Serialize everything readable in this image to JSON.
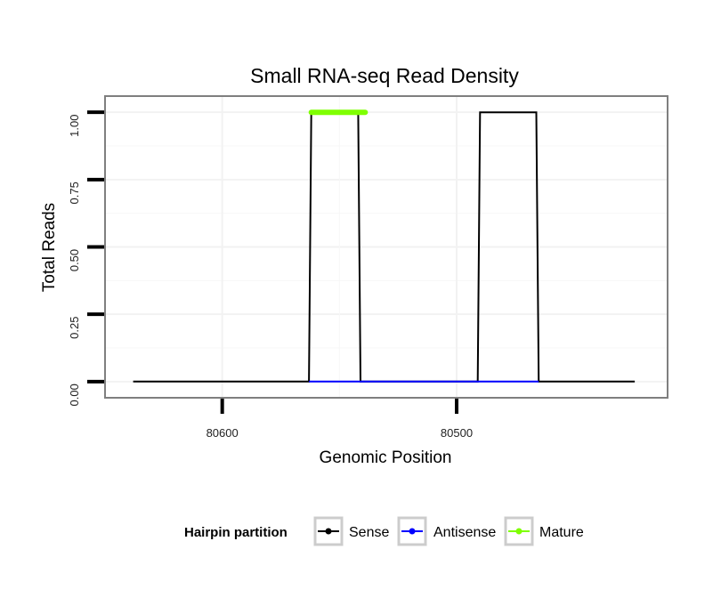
{
  "chart_data": {
    "type": "line",
    "title": "Small RNA-seq Read Density",
    "xlabel": "Genomic Position",
    "ylabel": "Total Reads",
    "x_reversed": true,
    "xlim": [
      80650,
      80410
    ],
    "ylim": [
      -0.06,
      1.06
    ],
    "x_ticks": [
      80600,
      80500
    ],
    "y_ticks": [
      0.0,
      0.25,
      0.5,
      0.75,
      1.0
    ],
    "y_tick_labels": [
      "0.00",
      "0.25",
      "0.50",
      "0.75",
      "1.00"
    ],
    "x_tick_labels": [
      "80600",
      "80500"
    ],
    "grid": true,
    "legend_position": "bottom",
    "legend_title": "Hairpin partition",
    "series": [
      {
        "name": "Sense",
        "color": "#000000",
        "points": [
          [
            80638,
            0
          ],
          [
            80563,
            0
          ],
          [
            80562,
            1
          ],
          [
            80542,
            1
          ],
          [
            80541,
            0
          ],
          [
            80491,
            0
          ],
          [
            80490,
            1
          ],
          [
            80466,
            1
          ],
          [
            80465,
            0
          ],
          [
            80424,
            0
          ]
        ]
      },
      {
        "name": "Antisense",
        "color": "#0000ff",
        "points": [
          [
            80563,
            0
          ],
          [
            80541,
            0
          ],
          [
            80490,
            0
          ],
          [
            80465,
            0
          ]
        ]
      },
      {
        "name": "Mature",
        "color": "#7fff00",
        "points": [
          [
            80562,
            1
          ],
          [
            80539,
            1
          ]
        ]
      }
    ]
  }
}
